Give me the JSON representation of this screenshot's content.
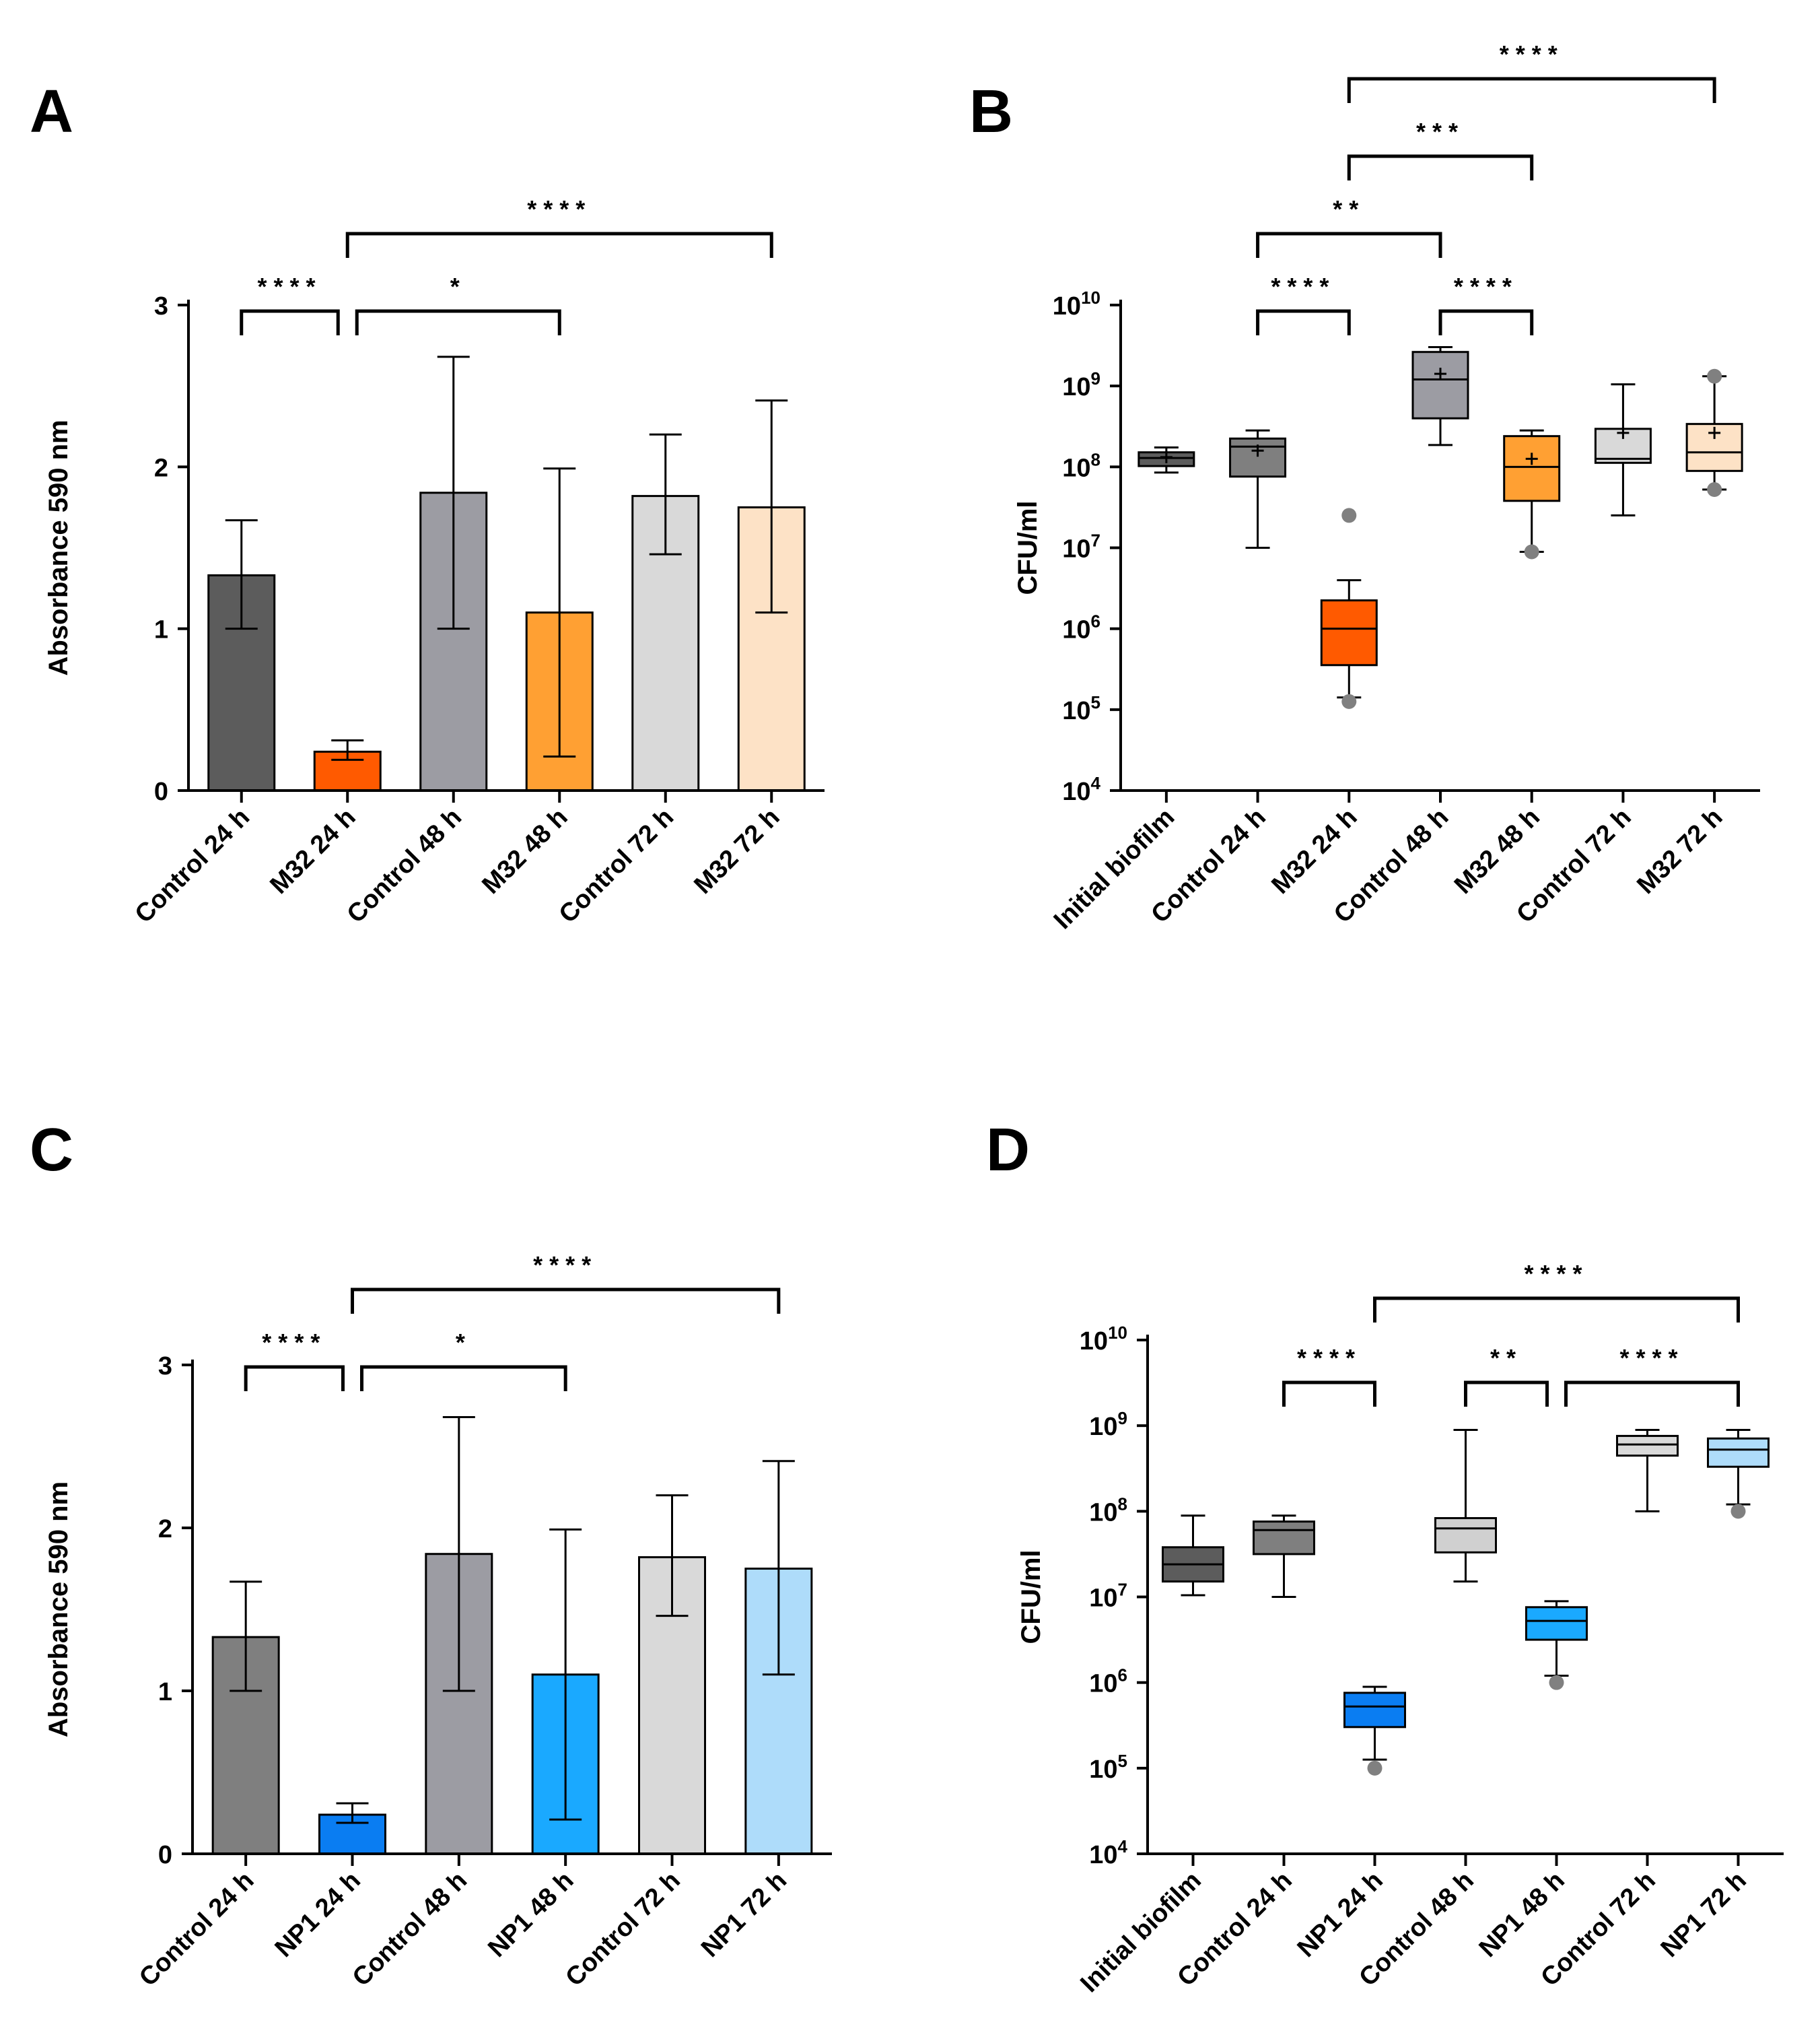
{
  "chart_data": [
    {
      "panel": "A",
      "type": "bar",
      "ylabel": "Absorbance 590 nm",
      "ylim": [
        0,
        3
      ],
      "yticks": [
        "0",
        "1",
        "2",
        "3"
      ],
      "categories": [
        "Control 24 h",
        "M32 24 h",
        "Control 48 h",
        "M32  48 h",
        "Control 72 h",
        "M32 72 h"
      ],
      "values": [
        1.33,
        0.24,
        1.84,
        1.1,
        1.82,
        1.75
      ],
      "error_low": [
        1.0,
        0.19,
        1.0,
        0.21,
        1.46,
        1.1
      ],
      "error_high": [
        1.67,
        0.31,
        2.68,
        1.99,
        2.2,
        2.41
      ],
      "colors": [
        "#5c5c5c",
        "#ff5a00",
        "#9c9ca3",
        "#ffa033",
        "#d9d9d9",
        "#fde2c6"
      ],
      "significance": [
        {
          "from": 0,
          "to": 1,
          "label": "****",
          "level": 1
        },
        {
          "from": 1,
          "to": 3,
          "label": "*",
          "level": 1
        },
        {
          "from": 1,
          "to": 5,
          "label": "****",
          "level": 2
        }
      ]
    },
    {
      "panel": "B",
      "type": "box",
      "ylabel": "CFU/ml",
      "scale": "log10",
      "ylim_exp": [
        4,
        10
      ],
      "ytick_exps": [
        4,
        5,
        6,
        7,
        8,
        9,
        10
      ],
      "categories": [
        "Initial biofilm",
        "Control 24 h",
        "M32 24 h",
        "Control 48 h",
        "M32 48 h",
        "Control 72 h",
        "M32 72 h"
      ],
      "boxes_log10": [
        {
          "whisker_low": 7.93,
          "q1": 8.01,
          "median": 8.11,
          "q3": 8.18,
          "whisker_high": 8.24,
          "mean": 8.12,
          "outliers": []
        },
        {
          "whisker_low": 7.0,
          "q1": 7.88,
          "median": 8.25,
          "q3": 8.35,
          "whisker_high": 8.45,
          "mean": 8.2,
          "outliers": []
        },
        {
          "whisker_low": 5.15,
          "q1": 5.55,
          "median": 6.0,
          "q3": 6.35,
          "whisker_high": 6.6,
          "mean": null,
          "outliers": [
            5.1,
            7.4
          ]
        },
        {
          "whisker_low": 8.27,
          "q1": 8.6,
          "median": 9.08,
          "q3": 9.42,
          "whisker_high": 9.48,
          "mean": 9.15,
          "outliers": []
        },
        {
          "whisker_low": 6.95,
          "q1": 7.58,
          "median": 8.0,
          "q3": 8.38,
          "whisker_high": 8.45,
          "mean": 8.1,
          "outliers": [
            6.95
          ]
        },
        {
          "whisker_low": 7.4,
          "q1": 8.05,
          "median": 8.1,
          "q3": 8.47,
          "whisker_high": 9.02,
          "mean": 8.42,
          "outliers": []
        },
        {
          "whisker_low": 7.72,
          "q1": 7.95,
          "median": 8.18,
          "q3": 8.53,
          "whisker_high": 9.12,
          "mean": 8.42,
          "outliers": [
            7.72,
            9.12
          ]
        }
      ],
      "colors": [
        "#5c5c5c",
        "#7f7f7f",
        "#ff5a00",
        "#9c9ca3",
        "#ffa033",
        "#d9d9d9",
        "#fde2c6"
      ],
      "significance": [
        {
          "from": 1,
          "to": 2,
          "label": "****",
          "level": 1
        },
        {
          "from": 3,
          "to": 4,
          "label": "****",
          "level": 1
        },
        {
          "from": 1,
          "to": 3,
          "label": "**",
          "level": 2
        },
        {
          "from": 2,
          "to": 4,
          "label": "***",
          "level": 3
        },
        {
          "from": 2,
          "to": 6,
          "label": "****",
          "level": 4
        }
      ]
    },
    {
      "panel": "C",
      "type": "bar",
      "ylabel": "Absorbance 590 nm",
      "ylim": [
        0,
        3
      ],
      "yticks": [
        "0",
        "1",
        "2",
        "3"
      ],
      "categories": [
        "Control 24 h",
        "NP1 24 h",
        "Control 48 h",
        "NP1 48 h",
        "Control 72 h",
        "NP1 72 h"
      ],
      "values": [
        1.33,
        0.24,
        1.84,
        1.1,
        1.82,
        1.75
      ],
      "error_low": [
        1.0,
        0.19,
        1.0,
        0.21,
        1.46,
        1.1
      ],
      "error_high": [
        1.67,
        0.31,
        2.68,
        1.99,
        2.2,
        2.41
      ],
      "colors": [
        "#7f7f7f",
        "#0a7df2",
        "#9c9ca3",
        "#1aa9ff",
        "#d9d9d9",
        "#aedcfa"
      ],
      "significance": [
        {
          "from": 0,
          "to": 1,
          "label": "****",
          "level": 1
        },
        {
          "from": 1,
          "to": 3,
          "label": "*",
          "level": 1
        },
        {
          "from": 1,
          "to": 5,
          "label": "****",
          "level": 2
        }
      ]
    },
    {
      "panel": "D",
      "type": "box",
      "ylabel": "CFU/ml",
      "scale": "log10",
      "ylim_exp": [
        4,
        10
      ],
      "ytick_exps": [
        4,
        5,
        6,
        7,
        8,
        9,
        10
      ],
      "categories": [
        "Initial biofilm",
        "Control 24 h",
        "NP1 24 h",
        "Control 48 h",
        "NP1 48 h",
        "Control 72 h",
        "NP1 72 h"
      ],
      "boxes_log10": [
        {
          "whisker_low": 7.02,
          "q1": 7.18,
          "median": 7.38,
          "q3": 7.58,
          "whisker_high": 7.95,
          "mean": null,
          "outliers": []
        },
        {
          "whisker_low": 7.0,
          "q1": 7.5,
          "median": 7.78,
          "q3": 7.88,
          "whisker_high": 7.95,
          "mean": null,
          "outliers": []
        },
        {
          "whisker_low": 5.1,
          "q1": 5.48,
          "median": 5.72,
          "q3": 5.88,
          "whisker_high": 5.95,
          "mean": null,
          "outliers": [
            5.0
          ]
        },
        {
          "whisker_low": 7.18,
          "q1": 7.52,
          "median": 7.8,
          "q3": 7.92,
          "whisker_high": 8.95,
          "mean": null,
          "outliers": []
        },
        {
          "whisker_low": 6.08,
          "q1": 6.5,
          "median": 6.72,
          "q3": 6.88,
          "whisker_high": 6.95,
          "mean": null,
          "outliers": [
            6.0
          ]
        },
        {
          "whisker_low": 8.0,
          "q1": 8.65,
          "median": 8.78,
          "q3": 8.88,
          "whisker_high": 8.95,
          "mean": null,
          "outliers": []
        },
        {
          "whisker_low": 8.08,
          "q1": 8.52,
          "median": 8.72,
          "q3": 8.85,
          "whisker_high": 8.95,
          "mean": null,
          "outliers": [
            8.0
          ]
        }
      ],
      "colors": [
        "#5c5c5c",
        "#7f7f7f",
        "#0a7df2",
        "#d0d0d0",
        "#1aa9ff",
        "#d9d9d9",
        "#aedcfa"
      ],
      "significance": [
        {
          "from": 1,
          "to": 2,
          "label": "****",
          "level": 1
        },
        {
          "from": 3,
          "to": 4,
          "label": "**",
          "level": 1
        },
        {
          "from": 4,
          "to": 6,
          "label": "****",
          "level": 1
        },
        {
          "from": 2,
          "to": 6,
          "label": "****",
          "level": 2
        }
      ]
    }
  ]
}
